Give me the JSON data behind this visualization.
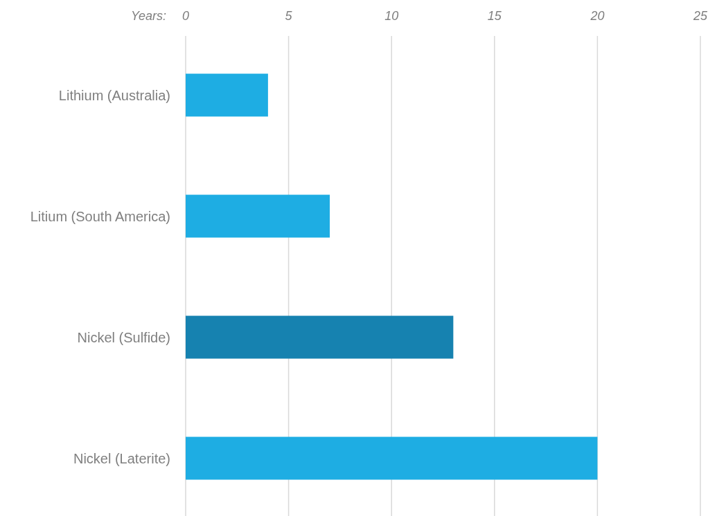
{
  "chart_data": {
    "type": "bar",
    "orientation": "horizontal",
    "xlabel": "Years:",
    "categories": [
      "Lithium (Australia)",
      "Litium (South America)",
      "Nickel (Sulfide)",
      "Nickel (Laterite)"
    ],
    "values": [
      4,
      7,
      13,
      20
    ],
    "colors": [
      "#1eade3",
      "#1eade3",
      "#1682b0",
      "#1eade3"
    ],
    "xlim": [
      0,
      25
    ],
    "xticks": [
      0,
      5,
      10,
      15,
      20,
      25
    ],
    "grid": "x"
  }
}
